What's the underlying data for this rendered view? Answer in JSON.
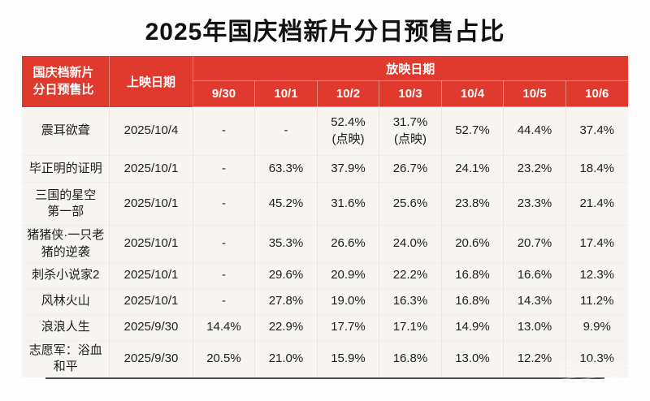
{
  "chart_data": {
    "type": "table",
    "title": "2025年国庆档新片分日预售占比",
    "corner_header": "国庆档新片\n分日预售比",
    "release_header": "上映日期",
    "screening_header": "放映日期",
    "date_columns": [
      "9/30",
      "10/1",
      "10/2",
      "10/3",
      "10/4",
      "10/5",
      "10/6"
    ],
    "rows": [
      {
        "film": "震耳欲聋",
        "release": "2025/10/4",
        "values": [
          "-",
          "-",
          "52.4%\n(点映)",
          "31.7%\n(点映)",
          "52.7%",
          "44.4%",
          "37.4%"
        ]
      },
      {
        "film": "毕正明的证明",
        "release": "2025/10/1",
        "values": [
          "-",
          "63.3%",
          "37.9%",
          "26.7%",
          "24.1%",
          "23.2%",
          "18.4%"
        ]
      },
      {
        "film": "三国的星空\n第一部",
        "release": "2025/10/1",
        "values": [
          "-",
          "45.2%",
          "31.6%",
          "25.6%",
          "23.8%",
          "23.3%",
          "21.4%"
        ]
      },
      {
        "film": "猪猪侠·一只老\n猪的逆袭",
        "release": "2025/10/1",
        "values": [
          "-",
          "35.3%",
          "26.6%",
          "24.0%",
          "20.6%",
          "20.7%",
          "17.4%"
        ]
      },
      {
        "film": "刺杀小说家2",
        "release": "2025/10/1",
        "values": [
          "-",
          "29.6%",
          "20.9%",
          "22.2%",
          "16.8%",
          "16.6%",
          "12.3%"
        ]
      },
      {
        "film": "风林火山",
        "release": "2025/10/1",
        "values": [
          "-",
          "27.8%",
          "19.0%",
          "16.3%",
          "16.8%",
          "14.3%",
          "11.2%"
        ]
      },
      {
        "film": "浪浪人生",
        "release": "2025/9/30",
        "values": [
          "14.4%",
          "22.9%",
          "17.7%",
          "17.1%",
          "14.9%",
          "13.0%",
          "9.9%"
        ]
      },
      {
        "film": "志愿军：浴血\n和平",
        "release": "2025/9/30",
        "values": [
          "20.5%",
          "21.0%",
          "15.9%",
          "16.8%",
          "13.0%",
          "12.2%",
          "10.3%"
        ]
      }
    ],
    "layout": {
      "legend": "none",
      "grid": "faint",
      "header_rows": 2
    },
    "colors": {
      "header_bg": "#e03a2e",
      "header_text": "#ffffff",
      "body_bg": "#f7f5f2",
      "body_text": "#1d1d1f",
      "bottom_rule": "#4b4b4b"
    }
  }
}
